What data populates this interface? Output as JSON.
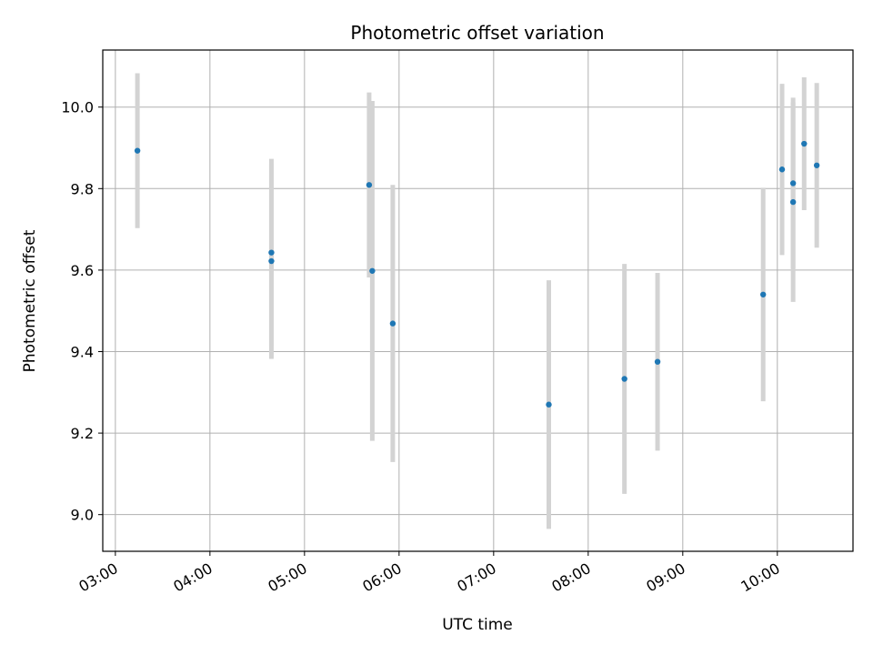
{
  "chart_data": {
    "type": "scatter",
    "title": "Photometric offset variation",
    "xlabel": "UTC time",
    "ylabel": "Photometric offset",
    "x_ticks": [
      "03:00",
      "04:00",
      "05:00",
      "06:00",
      "07:00",
      "08:00",
      "09:00",
      "10:00"
    ],
    "y_ticks": [
      "9.0",
      "9.2",
      "9.4",
      "9.6",
      "9.8",
      "10.0"
    ],
    "y_tick_values": [
      9.0,
      9.2,
      9.4,
      9.6,
      9.8,
      10.0
    ],
    "xlim": [
      "02:52",
      "10:48"
    ],
    "ylim": [
      8.91,
      10.14
    ],
    "grid": true,
    "marker_color": "#1f77b4",
    "errorbar_color": "#d3d3d3",
    "points": [
      {
        "time": "03:14",
        "value": 9.893,
        "error": 0.19
      },
      {
        "time": "04:39",
        "value": 9.643,
        "error": 0.23
      },
      {
        "time": "04:39",
        "value": 9.622,
        "error": 0.24
      },
      {
        "time": "05:41",
        "value": 9.809,
        "error": 0.227
      },
      {
        "time": "05:43",
        "value": 9.598,
        "error": 0.417
      },
      {
        "time": "05:56",
        "value": 9.469,
        "error": 0.34
      },
      {
        "time": "07:35",
        "value": 9.27,
        "error": 0.305
      },
      {
        "time": "08:23",
        "value": 9.333,
        "error": 0.282
      },
      {
        "time": "08:44",
        "value": 9.375,
        "error": 0.218
      },
      {
        "time": "09:51",
        "value": 9.54,
        "error": 0.262
      },
      {
        "time": "10:03",
        "value": 9.847,
        "error": 0.21
      },
      {
        "time": "10:10",
        "value": 9.767,
        "error": 0.245
      },
      {
        "time": "10:10",
        "value": 9.813,
        "error": 0.21
      },
      {
        "time": "10:17",
        "value": 9.91,
        "error": 0.163
      },
      {
        "time": "10:25",
        "value": 9.857,
        "error": 0.202
      }
    ]
  }
}
